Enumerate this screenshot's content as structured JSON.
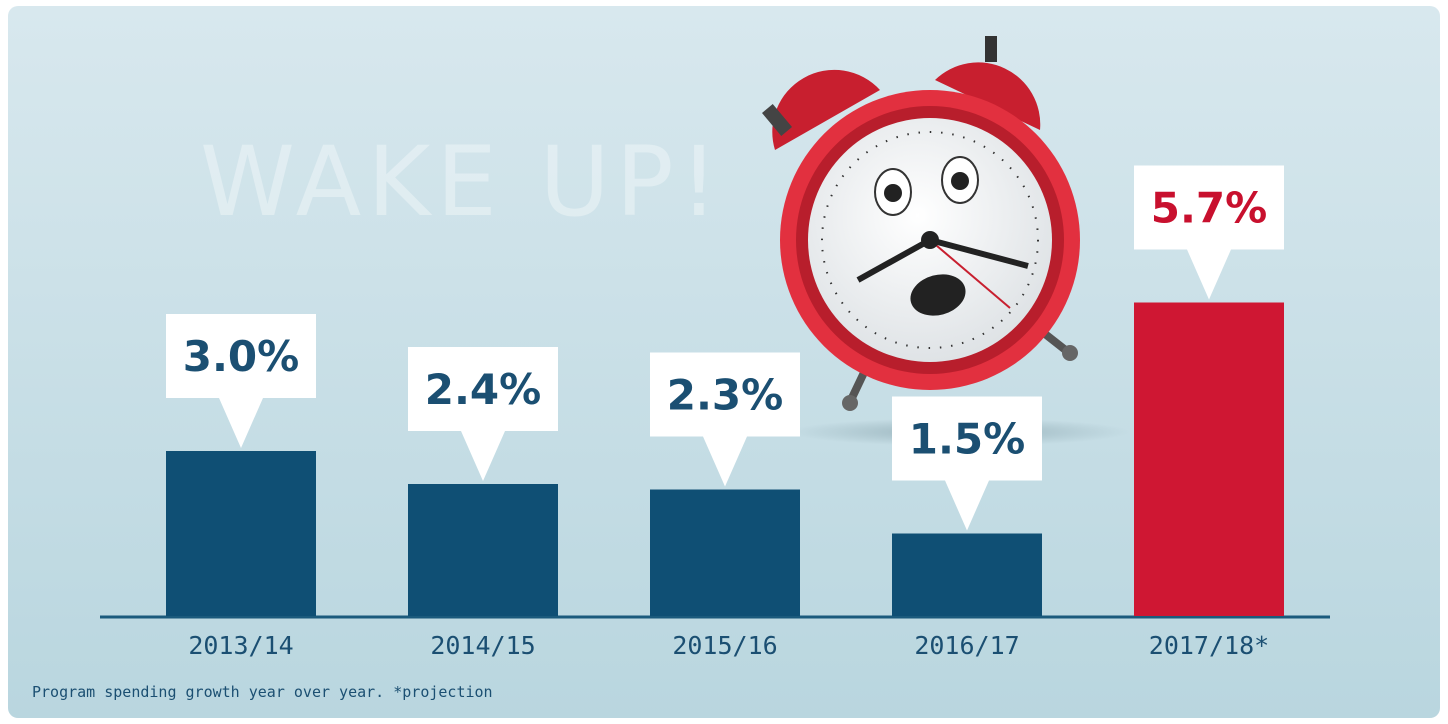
{
  "chart_data": {
    "type": "bar",
    "title": "WAKE UP!",
    "caption": "Program spending growth year over year. *projection",
    "categories": [
      "2013/14",
      "2014/15",
      "2015/16",
      "2016/17",
      "2017/18*"
    ],
    "values": [
      3.0,
      2.4,
      2.3,
      1.5,
      5.7
    ],
    "value_labels": [
      "3.0%",
      "2.4%",
      "2.3%",
      "1.5%",
      "5.7%"
    ],
    "colors": [
      "#0f4f74",
      "#0f4f74",
      "#0f4f74",
      "#0f4f74",
      "#cf1733"
    ],
    "label_colors": [
      "#1b4f72",
      "#1b4f72",
      "#1b4f72",
      "#1b4f72",
      "#c8102e"
    ]
  }
}
